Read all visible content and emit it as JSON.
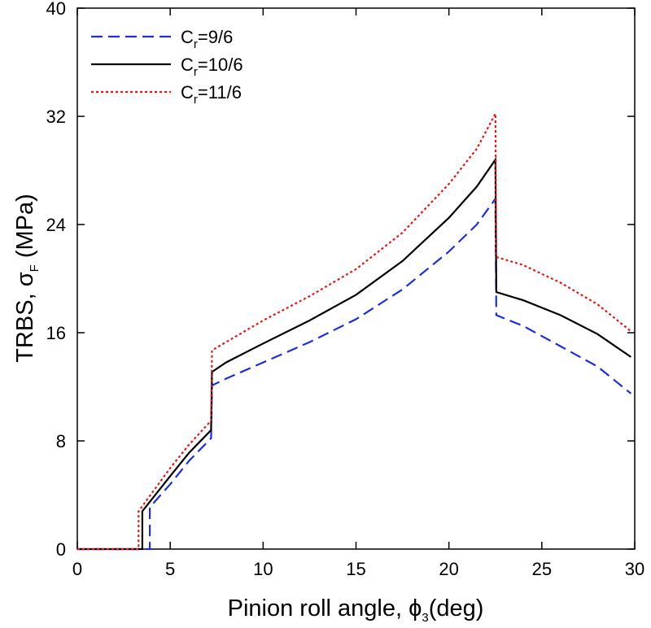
{
  "chart_data": {
    "type": "line",
    "title": "",
    "xlabel": {
      "main": "Pinion roll angle, ",
      "symbol": "ϕ",
      "sub": "3",
      "unit": "(deg)"
    },
    "ylabel": {
      "main": "TRBS, ",
      "symbol": "σ",
      "sub": "F",
      "unit": " (MPa)"
    },
    "xlim": [
      0,
      30
    ],
    "ylim": [
      0,
      40
    ],
    "xticks": [
      0,
      5,
      10,
      15,
      20,
      25,
      30
    ],
    "yticks": [
      0,
      8,
      16,
      24,
      32,
      40
    ],
    "xtick_labels": [
      "0",
      "5",
      "10",
      "15",
      "20",
      "25",
      "30"
    ],
    "ytick_labels": [
      "0",
      "8",
      "16",
      "24",
      "32",
      "40"
    ],
    "grid": false,
    "legend_position": "top-left",
    "series": [
      {
        "name": "9/6",
        "legend": {
          "base": "C",
          "sub": "r",
          "rest": "=9/6"
        },
        "color": "#1f2fd6",
        "dash": "dashed",
        "points": [
          [
            0,
            0
          ],
          [
            3.9,
            0
          ],
          [
            3.9,
            3.1
          ],
          [
            5,
            4.8
          ],
          [
            6,
            6.5
          ],
          [
            7.2,
            8.2
          ],
          [
            7.25,
            12.1
          ],
          [
            8,
            12.6
          ],
          [
            10,
            13.8
          ],
          [
            12.5,
            15.3
          ],
          [
            15,
            17.0
          ],
          [
            17.5,
            19.2
          ],
          [
            20,
            22.0
          ],
          [
            21.5,
            24.0
          ],
          [
            22.5,
            25.9
          ],
          [
            22.55,
            17.3
          ],
          [
            24,
            16.5
          ],
          [
            26,
            15.0
          ],
          [
            28,
            13.5
          ],
          [
            29.8,
            11.5
          ]
        ]
      },
      {
        "name": "10/6",
        "legend": {
          "base": "C",
          "sub": "r",
          "rest": "=10/6"
        },
        "color": "#000000",
        "dash": "solid",
        "points": [
          [
            0,
            0
          ],
          [
            3.5,
            0
          ],
          [
            3.5,
            2.8
          ],
          [
            5,
            5.4
          ],
          [
            6,
            7.1
          ],
          [
            7.2,
            8.8
          ],
          [
            7.25,
            13.1
          ],
          [
            8,
            13.8
          ],
          [
            10,
            15.2
          ],
          [
            12.5,
            16.9
          ],
          [
            15,
            18.8
          ],
          [
            17.5,
            21.3
          ],
          [
            20,
            24.5
          ],
          [
            21.5,
            26.8
          ],
          [
            22.5,
            28.8
          ],
          [
            22.55,
            19.0
          ],
          [
            24,
            18.4
          ],
          [
            26,
            17.3
          ],
          [
            28,
            15.9
          ],
          [
            29.8,
            14.2
          ]
        ]
      },
      {
        "name": "11/6",
        "legend": {
          "base": "C",
          "sub": "r",
          "rest": "=11/6"
        },
        "color": "#e01a1a",
        "dash": "dotted",
        "points": [
          [
            0,
            0
          ],
          [
            3.3,
            0
          ],
          [
            3.3,
            2.8
          ],
          [
            5,
            6.0
          ],
          [
            6,
            7.7
          ],
          [
            7.2,
            9.5
          ],
          [
            7.25,
            14.7
          ],
          [
            8,
            15.3
          ],
          [
            10,
            16.9
          ],
          [
            12.5,
            18.7
          ],
          [
            15,
            20.7
          ],
          [
            17.5,
            23.4
          ],
          [
            20,
            27.0
          ],
          [
            21.5,
            29.6
          ],
          [
            22.5,
            32.2
          ],
          [
            22.55,
            21.6
          ],
          [
            24,
            21.0
          ],
          [
            26,
            19.7
          ],
          [
            28,
            18.1
          ],
          [
            29.8,
            16.1
          ]
        ]
      }
    ]
  }
}
